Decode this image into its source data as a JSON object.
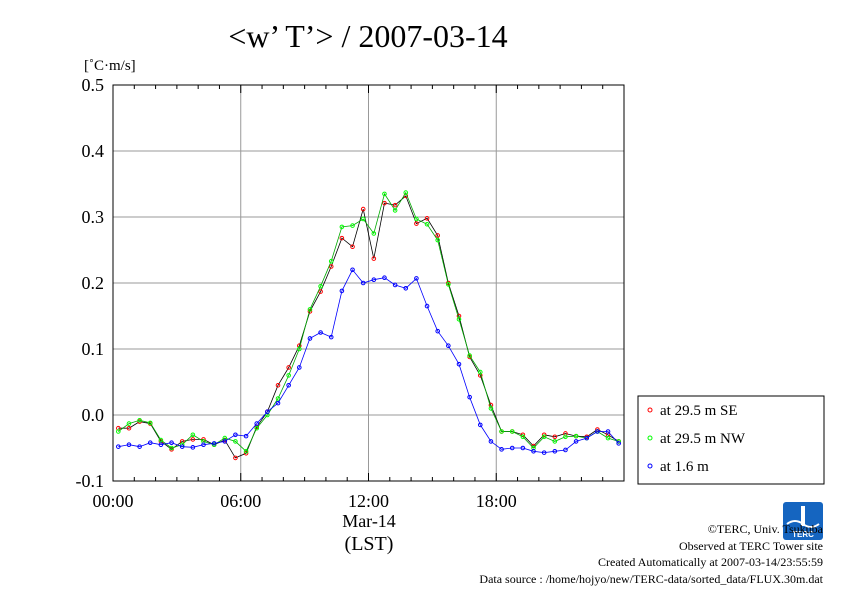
{
  "chart_data": {
    "type": "line",
    "title": "<w’ T’> / 2007-03-14",
    "ylabel": "[˚C·m/s]",
    "ylim": [
      -0.1,
      0.5
    ],
    "yticks": [
      "-0.1",
      "0.0",
      "0.1",
      "0.2",
      "0.3",
      "0.4",
      "0.5"
    ],
    "ytick_values": [
      -0.1,
      0.0,
      0.1,
      0.2,
      0.3,
      0.4,
      0.5
    ],
    "xlim": [
      0,
      24
    ],
    "xticks": [
      "00:00",
      "06:00",
      "12:00",
      "18:00"
    ],
    "xtick_values": [
      0,
      6,
      12,
      18
    ],
    "date_label": "Mar-14",
    "xlabel": "(LST)",
    "grid": true,
    "legend_position": "right",
    "x": [
      0.25,
      0.75,
      1.25,
      1.75,
      2.25,
      2.75,
      3.25,
      3.75,
      4.25,
      4.75,
      5.25,
      5.75,
      6.25,
      6.75,
      7.25,
      7.75,
      8.25,
      8.75,
      9.25,
      9.75,
      10.25,
      10.75,
      11.25,
      11.75,
      12.25,
      12.75,
      13.25,
      13.75,
      14.25,
      14.75,
      15.25,
      15.75,
      16.25,
      16.75,
      17.25,
      17.75,
      18.25,
      18.75,
      19.25,
      19.75,
      20.25,
      20.75,
      21.25,
      21.75,
      22.25,
      22.75,
      23.25,
      23.75
    ],
    "series": [
      {
        "name": "at 29.5 m SE",
        "color": "#ff0000",
        "line_color": "#000000",
        "values": [
          -0.02,
          -0.02,
          -0.01,
          -0.013,
          -0.04,
          -0.052,
          -0.04,
          -0.037,
          -0.037,
          -0.045,
          -0.038,
          -0.065,
          -0.058,
          -0.018,
          0.005,
          0.045,
          0.072,
          0.105,
          0.157,
          0.187,
          0.225,
          0.268,
          0.255,
          0.312,
          0.237,
          0.321,
          0.318,
          0.332,
          0.29,
          0.298,
          0.272,
          0.2,
          0.15,
          0.088,
          0.06,
          0.015,
          -0.025,
          -0.025,
          -0.03,
          -0.047,
          -0.03,
          -0.033,
          -0.028,
          -0.032,
          -0.033,
          -0.022,
          -0.03,
          -0.04
        ]
      },
      {
        "name": "at 29.5 m NW",
        "color": "#00ff00",
        "line_color": "#00aa00",
        "values": [
          -0.025,
          -0.013,
          -0.008,
          -0.012,
          -0.038,
          -0.05,
          -0.045,
          -0.03,
          -0.04,
          -0.045,
          -0.035,
          -0.04,
          -0.055,
          -0.02,
          0.0,
          0.025,
          0.06,
          0.1,
          0.16,
          0.195,
          0.233,
          0.285,
          0.287,
          0.297,
          0.275,
          0.335,
          0.31,
          0.337,
          0.297,
          0.289,
          0.265,
          0.198,
          0.145,
          0.09,
          0.065,
          0.01,
          -0.025,
          -0.025,
          -0.033,
          -0.05,
          -0.033,
          -0.04,
          -0.033,
          -0.032,
          -0.035,
          -0.025,
          -0.035,
          -0.04
        ]
      },
      {
        "name": "at 1.6 m",
        "color": "#0000ff",
        "line_color": "#0000ff",
        "values": [
          -0.048,
          -0.045,
          -0.048,
          -0.042,
          -0.045,
          -0.042,
          -0.048,
          -0.049,
          -0.045,
          -0.043,
          -0.04,
          -0.03,
          -0.032,
          -0.013,
          0.005,
          0.018,
          0.045,
          0.072,
          0.116,
          0.125,
          0.118,
          0.188,
          0.22,
          0.2,
          0.205,
          0.208,
          0.197,
          0.192,
          0.207,
          0.165,
          0.127,
          0.105,
          0.077,
          0.027,
          -0.015,
          -0.04,
          -0.052,
          -0.05,
          -0.05,
          -0.055,
          -0.057,
          -0.055,
          -0.053,
          -0.04,
          -0.035,
          -0.025,
          -0.025,
          -0.043
        ]
      }
    ]
  },
  "footer": {
    "copyright": "©TERC, Univ. Tsukuba",
    "observed": "Observed at TERC Tower site",
    "created": "Created Automatically at 2007-03-14/23:55:59",
    "source": "Data source : /home/hojyo/new/TERC-data/sorted_data/FLUX.30m.dat"
  },
  "logo": {
    "text": "TERC",
    "color": "#1565c0"
  }
}
